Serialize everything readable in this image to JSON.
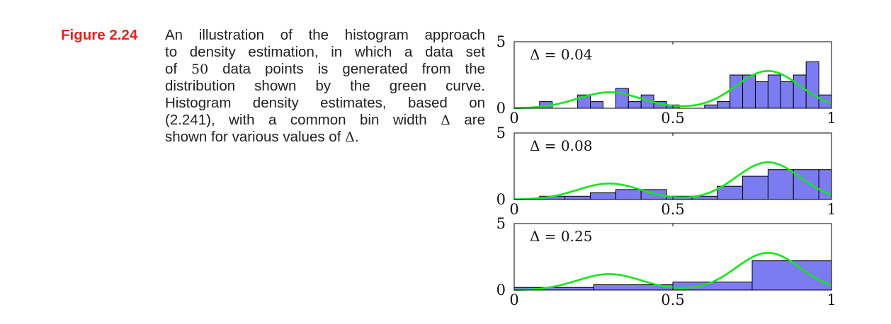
{
  "figure": {
    "label": "Figure 2.24",
    "caption_lines": [
      "An illustration of the histogram approach",
      "to density estimation, in which a data set",
      [
        "of ",
        "50",
        " data points is generated from the"
      ],
      "distribution shown by the green curve.",
      "Histogram density estimates, based on",
      [
        "(2.241), with a common bin width ",
        "Δ",
        " are"
      ],
      [
        "shown for various values of ",
        "Δ",
        "."
      ]
    ]
  },
  "colors": {
    "bar_fill": "#7b7bf2",
    "bar_stroke": "#000000",
    "curve": "#13e817",
    "caption_label": "#e8201c"
  },
  "chart_data": [
    {
      "type": "bar",
      "label": "Δ = 0.04",
      "bin_width": 0.04,
      "xlim": [
        0,
        1
      ],
      "ylim": [
        0,
        5
      ],
      "xticks": [
        "0",
        "0.5",
        "1"
      ],
      "yticks": [
        "0",
        "5"
      ],
      "bars": [
        {
          "x0": 0.08,
          "h": 0.5
        },
        {
          "x0": 0.2,
          "h": 1.0
        },
        {
          "x0": 0.24,
          "h": 0.5
        },
        {
          "x0": 0.32,
          "h": 1.5
        },
        {
          "x0": 0.36,
          "h": 0.5
        },
        {
          "x0": 0.4,
          "h": 1.0
        },
        {
          "x0": 0.44,
          "h": 0.5
        },
        {
          "x0": 0.48,
          "h": 0.25
        },
        {
          "x0": 0.6,
          "h": 0.25
        },
        {
          "x0": 0.64,
          "h": 0.5
        },
        {
          "x0": 0.68,
          "h": 2.5
        },
        {
          "x0": 0.72,
          "h": 2.5
        },
        {
          "x0": 0.76,
          "h": 2.0
        },
        {
          "x0": 0.8,
          "h": 2.5
        },
        {
          "x0": 0.84,
          "h": 2.0
        },
        {
          "x0": 0.88,
          "h": 2.5
        },
        {
          "x0": 0.92,
          "h": 3.5
        },
        {
          "x0": 0.96,
          "h": 1.0
        }
      ]
    },
    {
      "type": "bar",
      "label": "Δ = 0.08",
      "bin_width": 0.08,
      "xlim": [
        0,
        1
      ],
      "ylim": [
        0,
        5
      ],
      "xticks": [
        "0",
        "0.5",
        "1"
      ],
      "yticks": [
        "0",
        "5"
      ],
      "bars": [
        {
          "x0": 0.08,
          "h": 0.25
        },
        {
          "x0": 0.16,
          "h": 0.25
        },
        {
          "x0": 0.24,
          "h": 0.5
        },
        {
          "x0": 0.32,
          "h": 0.75
        },
        {
          "x0": 0.4,
          "h": 0.75
        },
        {
          "x0": 0.48,
          "h": 0.25
        },
        {
          "x0": 0.56,
          "h": 0.25
        },
        {
          "x0": 0.64,
          "h": 1.0
        },
        {
          "x0": 0.72,
          "h": 1.75
        },
        {
          "x0": 0.8,
          "h": 2.25
        },
        {
          "x0": 0.88,
          "h": 2.25
        },
        {
          "x0": 0.96,
          "h": 2.25
        }
      ]
    },
    {
      "type": "bar",
      "label": "Δ = 0.25",
      "bin_width": 0.25,
      "xlim": [
        0,
        1
      ],
      "ylim": [
        0,
        5
      ],
      "xticks": [
        "0",
        "0.5",
        "1"
      ],
      "yticks": [
        "0",
        "5"
      ],
      "bars": [
        {
          "x0": 0.0,
          "h": 0.2
        },
        {
          "x0": 0.25,
          "h": 0.4
        },
        {
          "x0": 0.5,
          "h": 0.6
        },
        {
          "x0": 0.75,
          "h": 2.2
        }
      ]
    }
  ]
}
